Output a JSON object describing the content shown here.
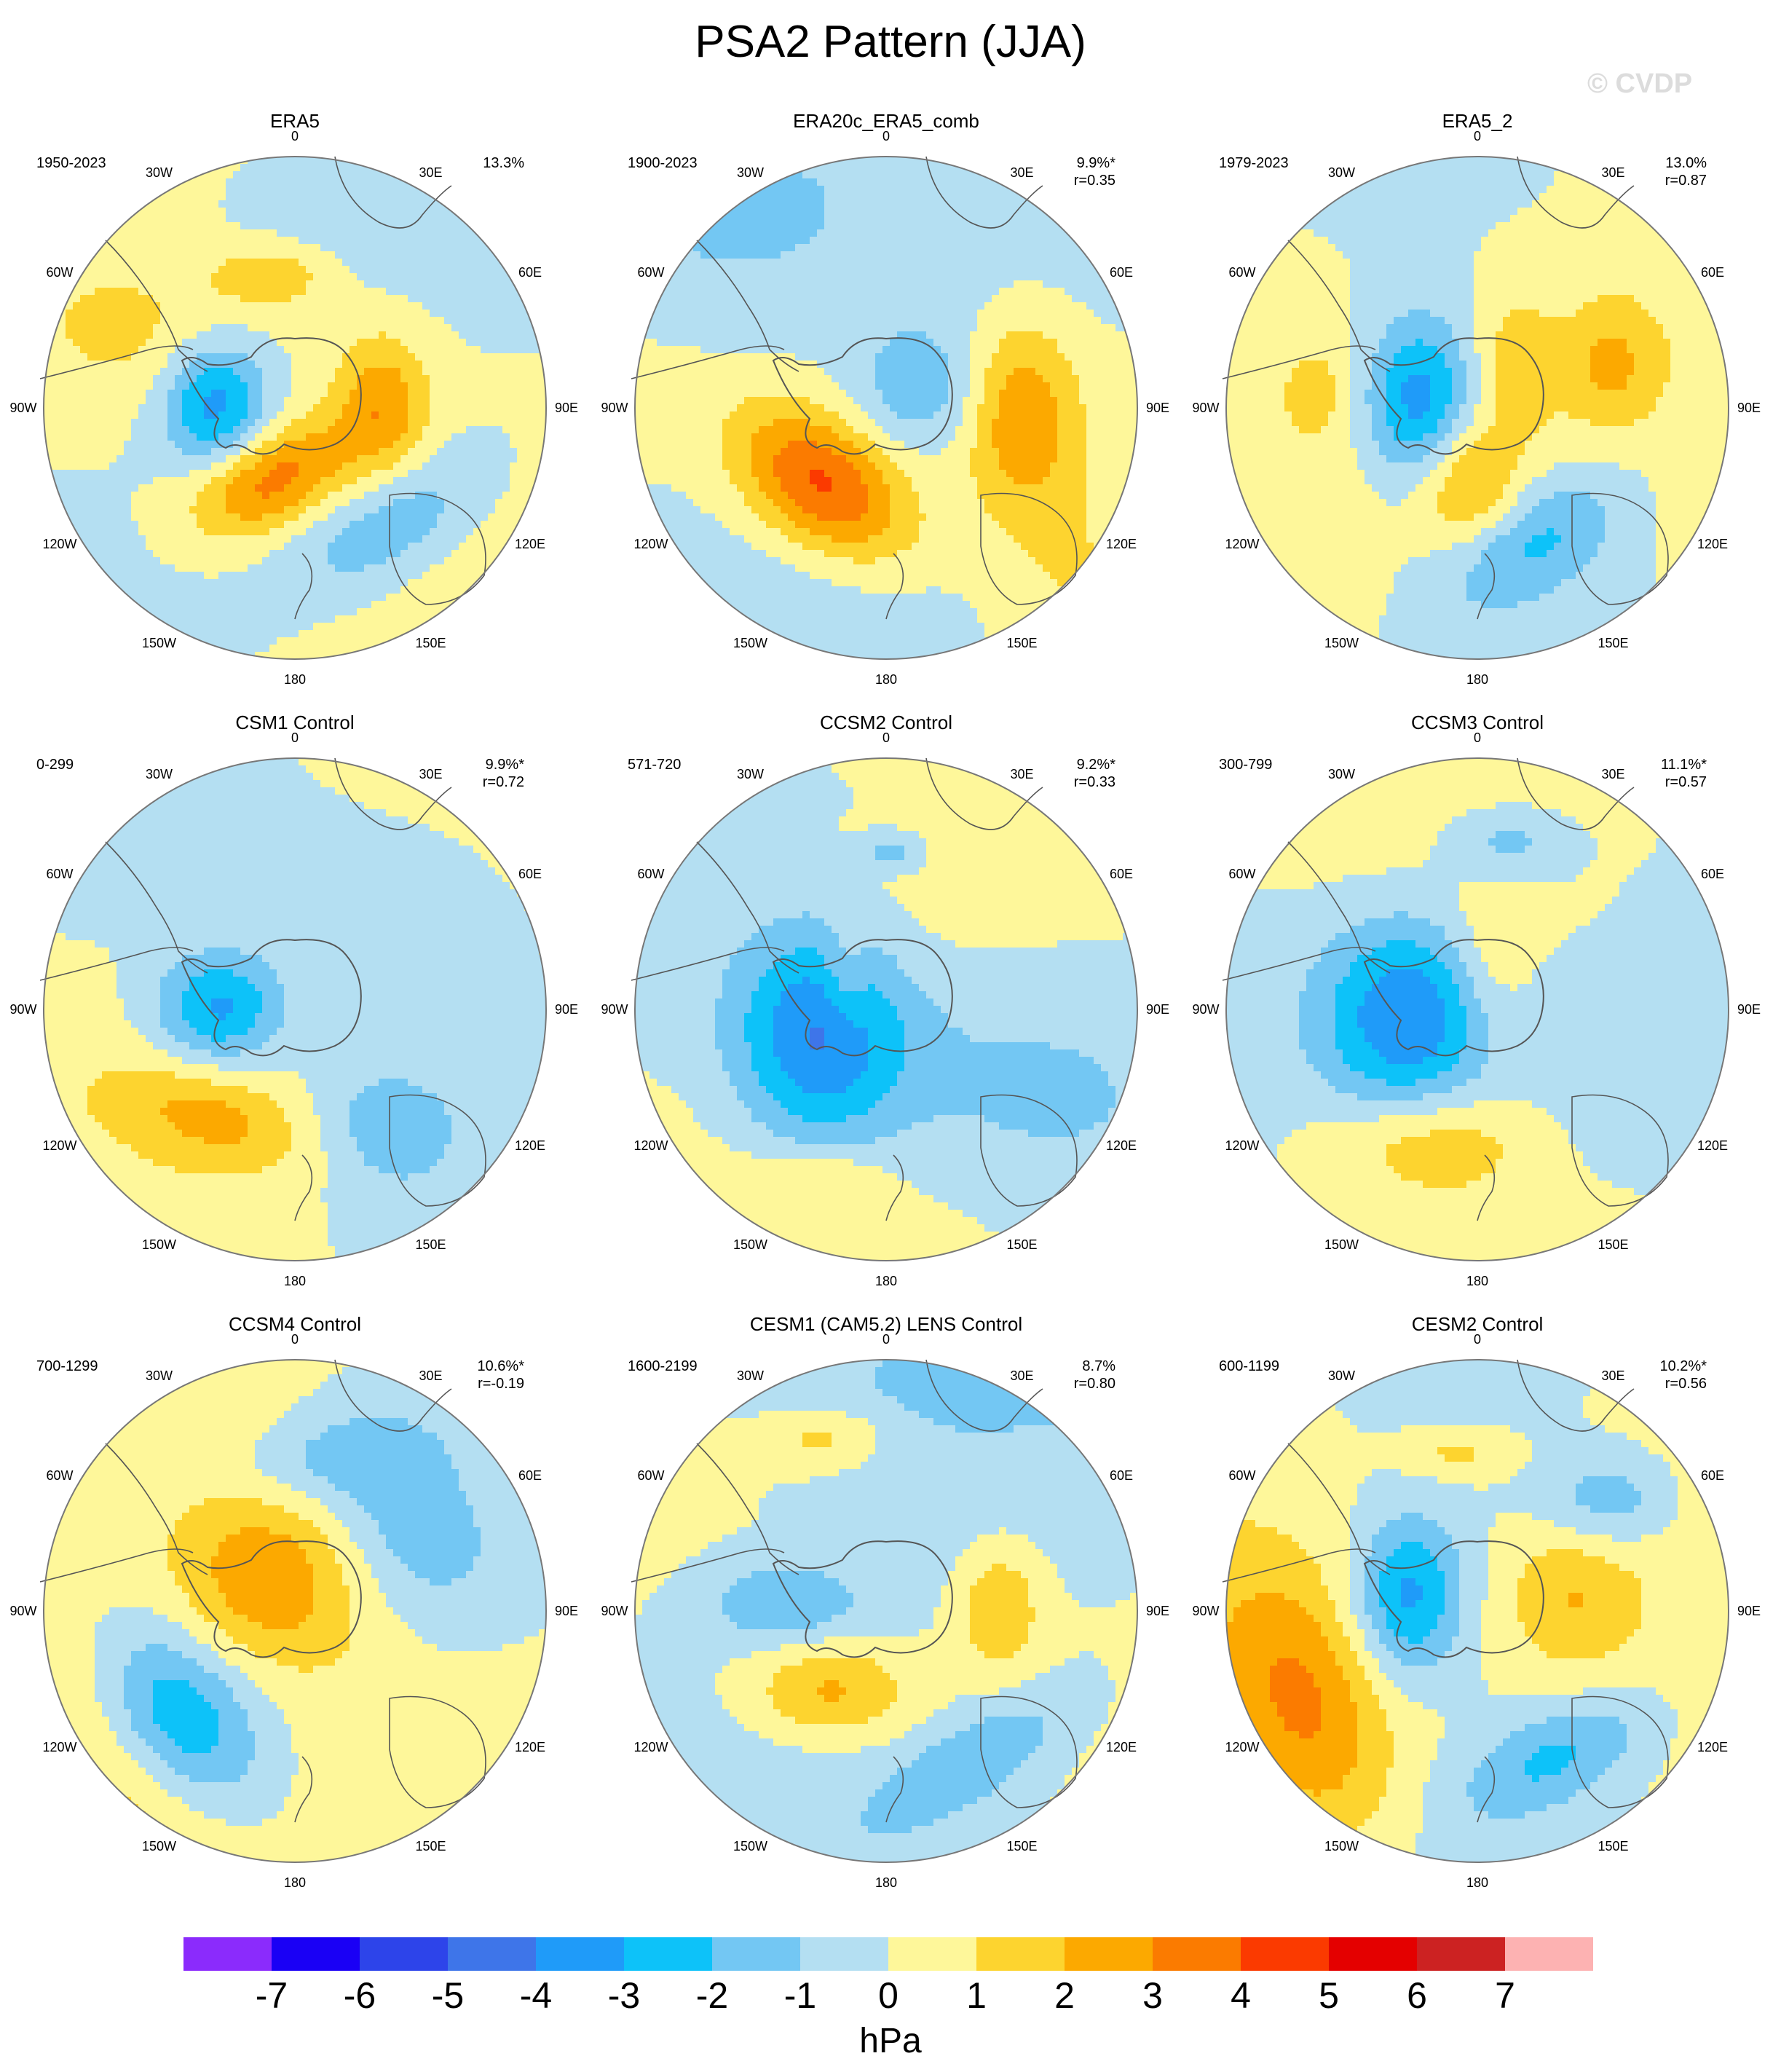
{
  "figure": {
    "title": "PSA2 Pattern (JJA)",
    "watermark": "© CVDP",
    "units": "hPa"
  },
  "colors": {
    "levels": [
      "#8b2bfc",
      "#1a00f5",
      "#2d44ea",
      "#3e75e9",
      "#1f9bf9",
      "#0dc2f9",
      "#73c7f3",
      "#b4dff2",
      "#fef79a",
      "#fdd42f",
      "#fca900",
      "#fb7b00",
      "#fb3a00",
      "#e40000",
      "#cc2222",
      "#fdb2b2"
    ],
    "coast": "#555555",
    "ring": "#777777"
  },
  "colorbar": {
    "ticks": [
      "-7",
      "-6",
      "-5",
      "-4",
      "-3",
      "-2",
      "-1",
      "0",
      "1",
      "2",
      "3",
      "4",
      "5",
      "6",
      "7"
    ]
  },
  "map_labels": {
    "lon0": "0",
    "lon30e": "30E",
    "lon60e": "60E",
    "lon90e": "90E",
    "lon120e": "120E",
    "lon150e": "150E",
    "lon180": "180",
    "lon150w": "150W",
    "lon120w": "120W",
    "lon90w": "90W",
    "lon60w": "60W",
    "lon30w": "30W"
  },
  "panels": [
    {
      "title": "ERA5",
      "years": "1950-2023",
      "pct": "13.3%",
      "corr": ""
    },
    {
      "title": "ERA20c_ERA5_comb",
      "years": "1900-2023",
      "pct": "9.9%*",
      "corr": "r=0.35"
    },
    {
      "title": "ERA5_2",
      "years": "1979-2023",
      "pct": "13.0%",
      "corr": "r=0.87"
    },
    {
      "title": "CSM1 Control",
      "years": "0-299",
      "pct": "9.9%*",
      "corr": "r=0.72"
    },
    {
      "title": "CCSM2 Control",
      "years": "571-720",
      "pct": "9.2%*",
      "corr": "r=0.33"
    },
    {
      "title": "CCSM3 Control",
      "years": "300-799",
      "pct": "11.1%*",
      "corr": "r=0.57"
    },
    {
      "title": "CCSM4 Control",
      "years": "700-1299",
      "pct": "10.6%*",
      "corr": "r=-0.19"
    },
    {
      "title": "CESM1 (CAM5.2) LENS Control",
      "years": "1600-2199",
      "pct": "8.7%",
      "corr": "r=0.80"
    },
    {
      "title": "CESM2 Control",
      "years": "600-1199",
      "pct": "10.2%*",
      "corr": "r=0.56"
    }
  ]
}
